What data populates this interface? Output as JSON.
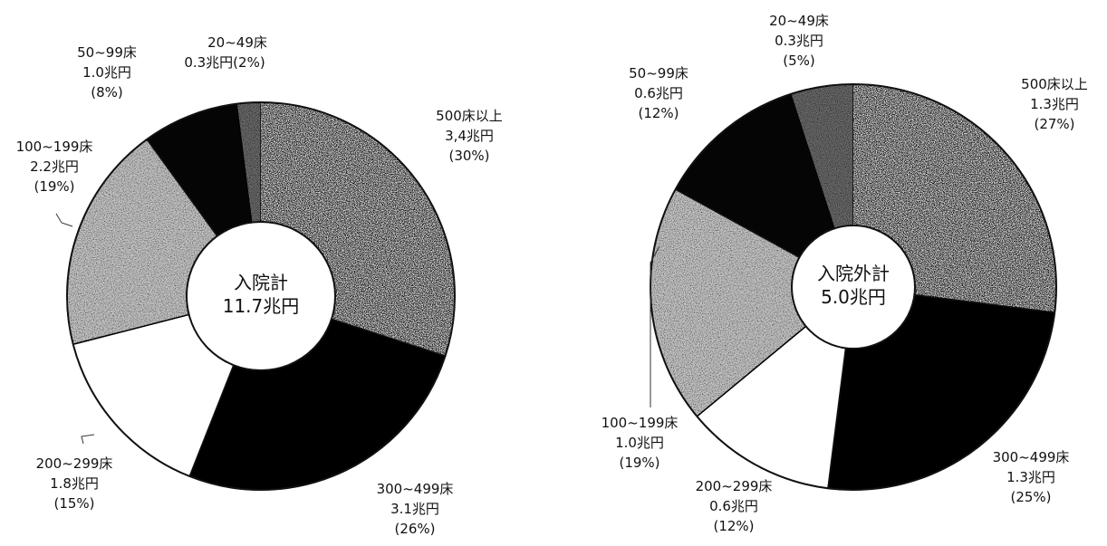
{
  "chart_data": [
    {
      "type": "pie",
      "donut": true,
      "center_label": [
        "入院計",
        "11.7兆円"
      ],
      "slices": [
        {
          "label": "500床以上",
          "value_text": "3,4兆円",
          "pct_text": "(30%)",
          "value": 30,
          "color": "#0a0a0a",
          "texture": "dark"
        },
        {
          "label": "300~499床",
          "value_text": "3.1兆円",
          "pct_text": "(26%)",
          "value": 26,
          "color": "#000000",
          "texture": "solid"
        },
        {
          "label": "200~299床",
          "value_text": "1.8兆円",
          "pct_text": "(15%)",
          "value": 15,
          "color": "#ffffff",
          "texture": "solid"
        },
        {
          "label": "100~199床",
          "value_text": "2.2兆円",
          "pct_text": "(19%)",
          "value": 19,
          "color": "#c8c8c8",
          "texture": "speckle"
        },
        {
          "label": "50~99床",
          "value_text": "1.0兆円",
          "pct_text": "(8%)",
          "value": 8,
          "color": "#050505",
          "texture": "solid"
        },
        {
          "label": "20~49床",
          "value_text": "0.3兆円",
          "pct_text": "(2%)",
          "value": 2,
          "color": "#6a6a6a",
          "texture": "speckle"
        }
      ]
    },
    {
      "type": "pie",
      "donut": true,
      "center_label": [
        "入院外計",
        "5.0兆円"
      ],
      "slices": [
        {
          "label": "500床以上",
          "value_text": "1.3兆円",
          "pct_text": "(27%)",
          "value": 27,
          "color": "#0a0a0a",
          "texture": "dark"
        },
        {
          "label": "300~499床",
          "value_text": "1.3兆円",
          "pct_text": "(25%)",
          "value": 25,
          "color": "#000000",
          "texture": "solid"
        },
        {
          "label": "200~299床",
          "value_text": "0.6兆円",
          "pct_text": "(12%)",
          "value": 12,
          "color": "#ffffff",
          "texture": "solid"
        },
        {
          "label": "100~199床",
          "value_text": "1.0兆円",
          "pct_text": "(19%)",
          "value": 19,
          "color": "#c8c8c8",
          "texture": "speckle"
        },
        {
          "label": "50~99床",
          "value_text": "0.6兆円",
          "pct_text": "(12%)",
          "value": 12,
          "color": "#050505",
          "texture": "solid"
        },
        {
          "label": "20~49床",
          "value_text": "0.3兆円",
          "pct_text": "(5%)",
          "value": 5,
          "color": "#6a6a6a",
          "texture": "speckle"
        }
      ]
    }
  ]
}
